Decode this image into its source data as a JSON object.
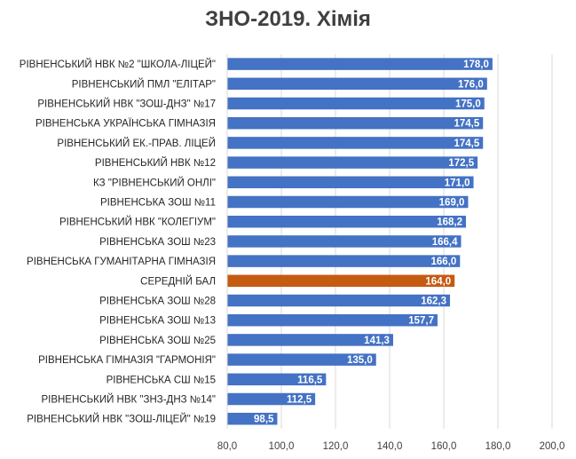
{
  "chart_data": {
    "type": "bar",
    "orientation": "horizontal",
    "title": "ЗНО-2019. Хімія",
    "categories": [
      "РІВНЕНСЬКИЙ НВК №2 \"ШКОЛА-ЛІЦЕЙ\"",
      "РІВНЕНСЬКИЙ ПМЛ \"ЕЛІТАР\"",
      "РІВНЕНСЬКИЙ НВК \"ЗОШ-ДНЗ\" №17",
      "РІВНЕНСЬКА УКРАЇНСЬКА ГІМНАЗІЯ",
      "РІВНЕНСЬКИЙ ЕК.-ПРАВ. ЛІЦЕЙ",
      "РІВНЕНСЬКИЙ НВК №12",
      "КЗ \"РІВНЕНСЬКИЙ ОНЛІ\"",
      "РІВНЕНСЬКА ЗОШ №11",
      "РІВНЕНСЬКИЙ НВК \"КОЛЕГІУМ\"",
      "РІВНЕНСЬКА ЗОШ №23",
      "РІВНЕНСЬКА ГУМАНІТАРНА ГІМНАЗІЯ",
      "СЕРЕДНІЙ БАЛ",
      "РІВНЕНСЬКА ЗОШ №28",
      "РІВНЕНСЬКА ЗОШ №13",
      "РІВНЕНСЬКА ЗОШ №25",
      "РІВНЕНСЬКА ГІМНАЗІЯ \"ГАРМОНІЯ\"",
      "РІВНЕНСЬКА СШ №15",
      "РІВНЕНСЬКИЙ НВК \"ЗНЗ-ДНЗ №14\"",
      "РІВНЕНСЬКИЙ НВК \"ЗОШ-ЛІЦЕЙ\" №19"
    ],
    "values": [
      178.0,
      176.0,
      175.0,
      174.5,
      174.5,
      172.5,
      171.0,
      169.0,
      168.2,
      166.4,
      166.0,
      164.0,
      162.3,
      157.7,
      141.3,
      135.0,
      116.5,
      112.5,
      98.5
    ],
    "value_labels": [
      "178,0",
      "176,0",
      "175,0",
      "174,5",
      "174,5",
      "172,5",
      "171,0",
      "169,0",
      "168,2",
      "166,4",
      "166,0",
      "164,0",
      "162,3",
      "157,7",
      "141,3",
      "135,0",
      "116,5",
      "112,5",
      "98,5"
    ],
    "highlight_category": "СЕРЕДНІЙ БАЛ",
    "xlim": [
      80,
      200
    ],
    "x_ticks": [
      80,
      100,
      120,
      140,
      160,
      180,
      200
    ],
    "x_tick_labels": [
      "80,0",
      "100,0",
      "120,0",
      "140,0",
      "160,0",
      "180,0",
      "200,0"
    ],
    "grid": true,
    "xlabel": "",
    "ylabel": "",
    "colors": {
      "bar": "#4472C4",
      "highlight": "#C55A11",
      "grid": "#D9D9D9",
      "value_text": "#FFFFFF"
    }
  }
}
